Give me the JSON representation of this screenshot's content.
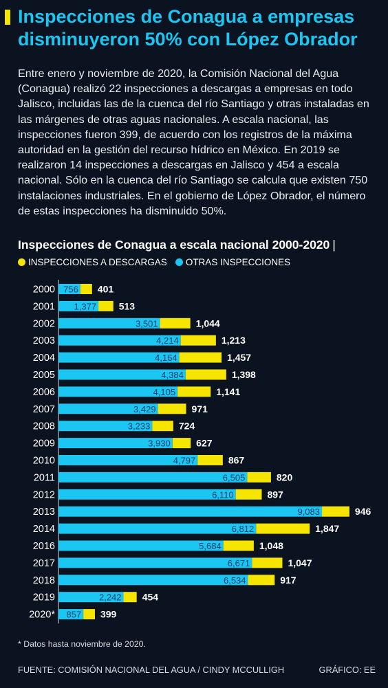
{
  "title": "Inspecciones de Conagua a empresas disminuyeron 50% con López Obrador",
  "intro": "Entre enero y noviembre de 2020, la Comisión Nacional del Agua (Conagua) realizó 22 inspecciones a descargas a empresas en todo Jalisco, incluidas las de la cuenca del río Santiago y otras instaladas en las márgenes de otras aguas nacionales. A escala nacional, las inspecciones fueron 399, de acuerdo con los registros de la máxima autoridad en la gestión del recurso hídrico en México. En 2019 se realizaron 14 inspecciones a descargas en Jalisco y 454 a escala nacional. Sólo en la cuenca del río Santiago se calcula que existen 750 instalaciones industriales. En el gobierno de López Obrador, el número de estas inspecciones ha disminuido 50%.",
  "colors": {
    "background": "#0b1320",
    "title": "#1bc6f2",
    "otras": "#1bc6f2",
    "descargas": "#f5e500"
  },
  "chart_data": {
    "type": "bar",
    "orientation": "horizontal",
    "stacked": true,
    "title": "Inspecciones de Conagua a escala nacional 2000-2020",
    "title_separator": "|",
    "legend_placement": "top-left",
    "categories": [
      "2000",
      "2001",
      "2002",
      "2003",
      "2004",
      "2005",
      "2006",
      "2007",
      "2008",
      "2009",
      "2010",
      "2011",
      "2012",
      "2013",
      "2014",
      "2016",
      "2017",
      "2018",
      "2019",
      "2020*"
    ],
    "series": [
      {
        "name": "OTRAS INSPECCIONES",
        "color": "#1bc6f2",
        "values": [
          756,
          1377,
          3501,
          4214,
          4164,
          4384,
          4105,
          3429,
          3233,
          3930,
          4797,
          6505,
          6110,
          9083,
          6812,
          5684,
          6671,
          6534,
          2242,
          857
        ],
        "labels": [
          "756",
          "1,377",
          "3,501",
          "4,214",
          "4,164",
          "4,384",
          "4,105",
          "3,429",
          "3,233",
          "3,930",
          "4,797",
          "6,505",
          "6,110",
          "9,083",
          "6,812",
          "5,684",
          "6,671",
          "6,534",
          "2,242",
          "857"
        ]
      },
      {
        "name": "INSPECCIONES A DESCARGAS",
        "color": "#f5e500",
        "values": [
          401,
          513,
          1044,
          1213,
          1457,
          1398,
          1141,
          971,
          724,
          627,
          867,
          820,
          897,
          946,
          1847,
          1048,
          1047,
          917,
          454,
          399
        ],
        "labels": [
          "401",
          "513",
          "1,044",
          "1,213",
          "1,457",
          "1,398",
          "1,141",
          "971",
          "724",
          "627",
          "867",
          "820",
          "897",
          "946",
          "1,847",
          "1,048",
          "1,047",
          "917",
          "454",
          "399"
        ]
      }
    ],
    "legend_order": [
      "INSPECCIONES A DESCARGAS",
      "OTRAS INSPECCIONES"
    ],
    "grid": false
  },
  "footnote": "* Datos hasta noviembre de 2020.",
  "footer": {
    "source": "FUENTE: COMISIÓN NACIONAL DEL AGUA / CINDY MCCULLIGH",
    "credit": "GRÁFICO: EE"
  }
}
